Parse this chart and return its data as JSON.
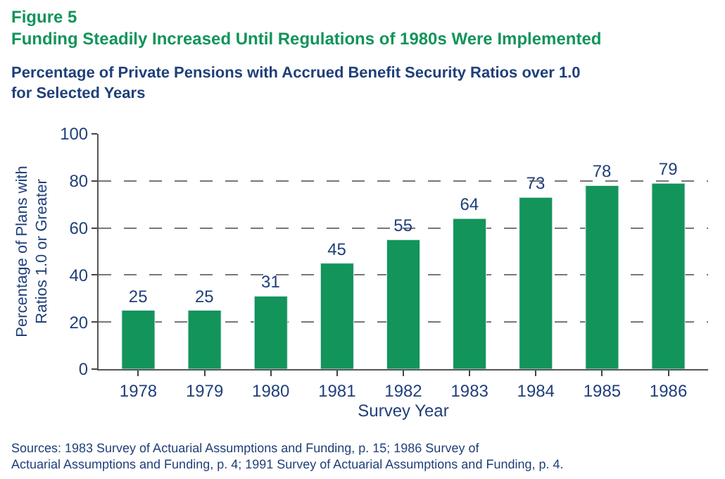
{
  "chart_data": {
    "type": "bar",
    "title": "Figure 5\nFunding Steadily Increased Until Regulations of 1980s Were Implemented",
    "subtitle": "Percentage of Private Pensions with Accrued Benefit Security Ratios over 1.0\nfor Selected Years",
    "xlabel": "Survey Year",
    "ylabel": "Percentage of Plans with\nRatios 1.0 or Greater",
    "categories": [
      "1978",
      "1979",
      "1980",
      "1981",
      "1982",
      "1983",
      "1984",
      "1985",
      "1986"
    ],
    "values": [
      25,
      25,
      31,
      45,
      55,
      64,
      73,
      78,
      79
    ],
    "color": "#12945a",
    "ylim": [
      0,
      100
    ],
    "yticks": [
      0,
      20,
      40,
      60,
      80,
      100
    ],
    "grid": "y",
    "data_labels": true,
    "annotations": [
      "Sources: 1983 Survey of Actuarial Assumptions and Funding, p. 15; 1986 Survey of\nActuarial Assumptions and Funding, p. 4; 1991 Survey of Actuarial Assumptions and Funding, p. 4."
    ]
  }
}
